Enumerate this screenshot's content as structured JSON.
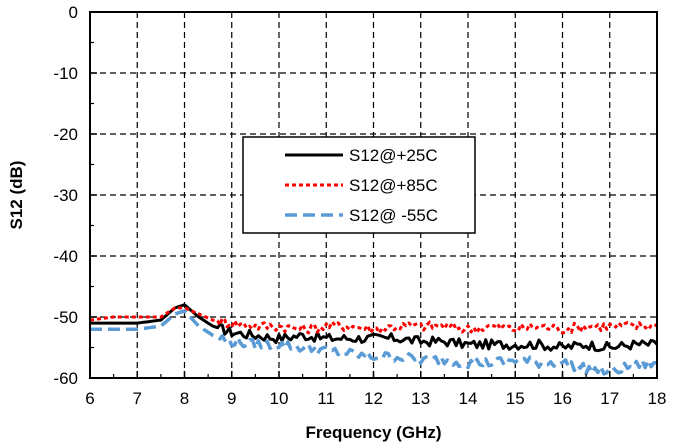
{
  "chart_data": {
    "type": "line",
    "xlabel": "Frequency (GHz)",
    "ylabel": "S12 (dB)",
    "xlim": [
      6,
      18
    ],
    "ylim": [
      -60,
      0
    ],
    "xticks": [
      6,
      7,
      8,
      9,
      10,
      11,
      12,
      13,
      14,
      15,
      16,
      17,
      18
    ],
    "yticks": [
      0,
      -10,
      -20,
      -30,
      -40,
      -50,
      -60
    ],
    "grid": "dashed major gridlines",
    "legend_position": "center-right",
    "series": [
      {
        "name": "S12@+25C",
        "color": "#000000",
        "dash": "solid",
        "x": [
          6,
          6.5,
          7,
          7.5,
          7.8,
          8,
          8.3,
          8.6,
          9,
          9.5,
          10,
          10.5,
          11,
          11.5,
          12,
          12.5,
          13,
          13.5,
          14,
          14.5,
          15,
          15.5,
          16,
          16.5,
          17,
          17.5,
          18
        ],
        "y": [
          -51,
          -51,
          -51,
          -50.5,
          -48.5,
          -48,
          -50,
          -51.5,
          -52.5,
          -53,
          -53.5,
          -53,
          -53.5,
          -53.5,
          -53.5,
          -53.5,
          -54,
          -54,
          -54.5,
          -54.5,
          -54.5,
          -54.5,
          -55,
          -54.5,
          -55,
          -54.5,
          -54.5
        ]
      },
      {
        "name": "S12@+85C",
        "color": "#ff0000",
        "dash": "4 3",
        "x": [
          6,
          6.5,
          7,
          7.5,
          7.8,
          8,
          8.3,
          8.6,
          9,
          9.5,
          10,
          10.5,
          11,
          11.5,
          12,
          12.5,
          13,
          13.5,
          14,
          14.5,
          15,
          15.5,
          16,
          16.5,
          17,
          17.5,
          18
        ],
        "y": [
          -50.5,
          -50,
          -50,
          -50,
          -48.5,
          -48.5,
          -49.5,
          -50.5,
          -51,
          -51.5,
          -51.5,
          -52,
          -51.5,
          -51.5,
          -52,
          -51.5,
          -51.5,
          -51.5,
          -52,
          -51.5,
          -52,
          -51.5,
          -52,
          -51.5,
          -51.5,
          -51.5,
          -51.5
        ]
      },
      {
        "name": "S12@ -55C",
        "color": "#5b9bd5",
        "dash": "12 6",
        "x": [
          6,
          6.5,
          7,
          7.5,
          7.8,
          8,
          8.3,
          8.6,
          9,
          9.5,
          10,
          10.5,
          11,
          11.5,
          12,
          12.5,
          13,
          13.5,
          14,
          14.5,
          15,
          15.5,
          16,
          16.5,
          17,
          17.5,
          18
        ],
        "y": [
          -52,
          -52,
          -52,
          -51.5,
          -49.5,
          -49,
          -51.5,
          -53,
          -54,
          -54.5,
          -54.5,
          -55,
          -55.5,
          -56,
          -56.5,
          -56.5,
          -57,
          -57,
          -57.5,
          -57.5,
          -57,
          -57.5,
          -57.5,
          -58.5,
          -59,
          -58,
          -57.5
        ]
      }
    ]
  }
}
